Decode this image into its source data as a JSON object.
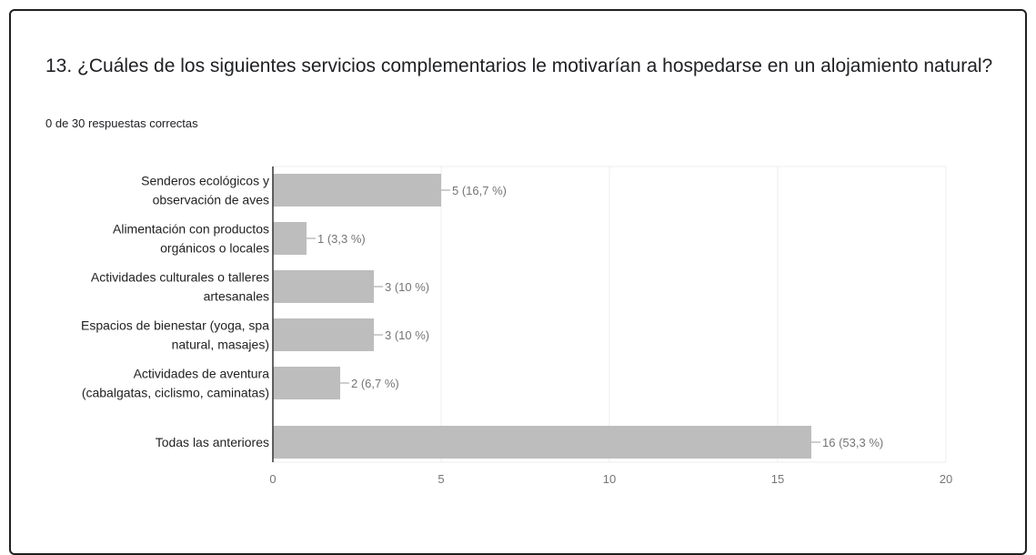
{
  "question": {
    "title": "13. ¿Cuáles de los siguientes servicios complementarios le motivarían a hospedarse en un alojamiento natural?",
    "subtitle": "0 de 30 respuestas correctas"
  },
  "colors": {
    "bar": "#bdbdbd",
    "grid": "#ececec",
    "axis": "#333333"
  },
  "chart_data": {
    "type": "bar",
    "orientation": "horizontal",
    "categories": [
      [
        "Senderos ecológicos y",
        "observación de aves"
      ],
      [
        "Alimentación con productos",
        "orgánicos o locales"
      ],
      [
        "Actividades culturales o talleres",
        "artesanales"
      ],
      [
        "Espacios de bienestar (yoga, spa",
        "natural, masajes)"
      ],
      [
        "Actividades de aventura",
        "(cabalgatas, ciclismo, caminatas)"
      ],
      [
        "Todas las anteriores"
      ]
    ],
    "values": [
      5,
      1,
      3,
      3,
      2,
      16
    ],
    "value_labels": [
      "5 (16,7 %)",
      "1 (3,3 %)",
      "3 (10 %)",
      "3 (10 %)",
      "2 (6,7 %)",
      "16 (53,3 %)"
    ],
    "xlim": [
      0,
      20
    ],
    "xticks": [
      0,
      5,
      10,
      15,
      20
    ],
    "grid": true
  }
}
